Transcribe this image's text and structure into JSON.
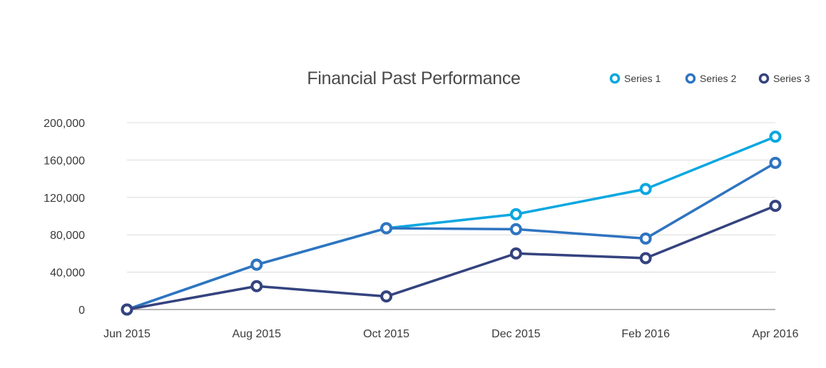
{
  "chart_data": {
    "type": "line",
    "title": "Financial Past Performance",
    "categories": [
      "Jun 2015",
      "Aug 2015",
      "Oct 2015",
      "Dec 2015",
      "Feb 2016",
      "Apr 2016"
    ],
    "yticks": [
      "0",
      "40,000",
      "80,000",
      "120,000",
      "160,000",
      "200,000"
    ],
    "ylim": [
      0,
      200000
    ],
    "grid": true,
    "legend_position": "top-right",
    "series": [
      {
        "name": "Series 1",
        "color": "#0aa7e0",
        "values": [
          0,
          48000,
          87000,
          102000,
          129000,
          185000
        ]
      },
      {
        "name": "Series 2",
        "color": "#2f74c0",
        "values": [
          0,
          48000,
          87000,
          86000,
          76000,
          157000
        ]
      },
      {
        "name": "Series 3",
        "color": "#34437f",
        "values": [
          0,
          25000,
          14000,
          60000,
          55000,
          111000
        ]
      }
    ]
  }
}
